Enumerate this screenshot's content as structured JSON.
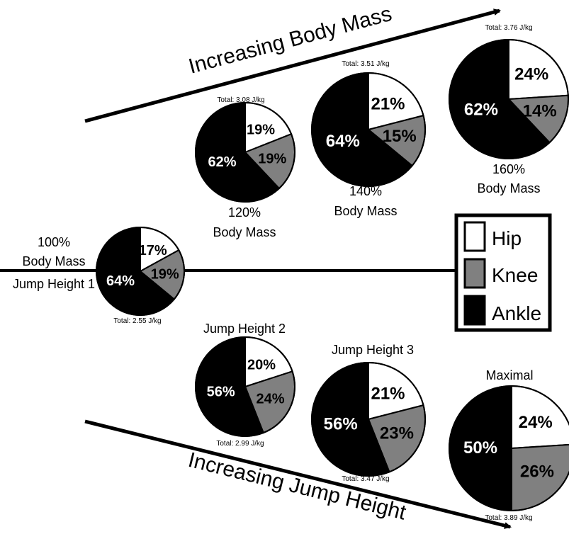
{
  "chart_data": {
    "type": "pie",
    "arrows": {
      "top": "Increasing Body Mass",
      "bottom": "Increasing Jump Height"
    },
    "legend": [
      {
        "name": "Hip",
        "color": "#ffffff"
      },
      {
        "name": "Knee",
        "color": "#808080"
      },
      {
        "name": "Ankle",
        "color": "#000000"
      }
    ],
    "pies": [
      {
        "id": "baseline",
        "label_lines": [
          "100%",
          "Body Mass",
          "Jump Height 1"
        ],
        "total": "Total: 2.55 J/kg",
        "values": [
          17,
          19,
          64
        ],
        "value_labels": [
          "17%",
          "19%",
          "64%"
        ]
      },
      {
        "id": "bm120",
        "label_lines": [
          "120%",
          "Body Mass"
        ],
        "total": "Total: 3.08 J/kg",
        "values": [
          19,
          19,
          62
        ],
        "value_labels": [
          "19%",
          "19%",
          "62%"
        ]
      },
      {
        "id": "bm140",
        "label_lines": [
          "140%",
          "Body Mass"
        ],
        "total": "Total: 3.51 J/kg",
        "values": [
          21,
          15,
          64
        ],
        "value_labels": [
          "21%",
          "15%",
          "64%"
        ]
      },
      {
        "id": "bm160",
        "label_lines": [
          "160%",
          "Body Mass"
        ],
        "total": "Total: 3.76 J/kg",
        "values": [
          24,
          14,
          62
        ],
        "value_labels": [
          "24%",
          "14%",
          "62%"
        ]
      },
      {
        "id": "jh2",
        "label_lines": [
          "Jump Height 2"
        ],
        "total": "Total: 2.99 J/kg",
        "values": [
          20,
          24,
          56
        ],
        "value_labels": [
          "20%",
          "24%",
          "56%"
        ]
      },
      {
        "id": "jh3",
        "label_lines": [
          "Jump Height 3"
        ],
        "total": "Total: 3.47 J/kg",
        "values": [
          21,
          23,
          56
        ],
        "value_labels": [
          "21%",
          "23%",
          "56%"
        ]
      },
      {
        "id": "maximal",
        "label_lines": [
          "Maximal"
        ],
        "total": "Total: 3.89 J/kg",
        "values": [
          24,
          26,
          50
        ],
        "value_labels": [
          "24%",
          "26%",
          "50%"
        ]
      }
    ]
  }
}
